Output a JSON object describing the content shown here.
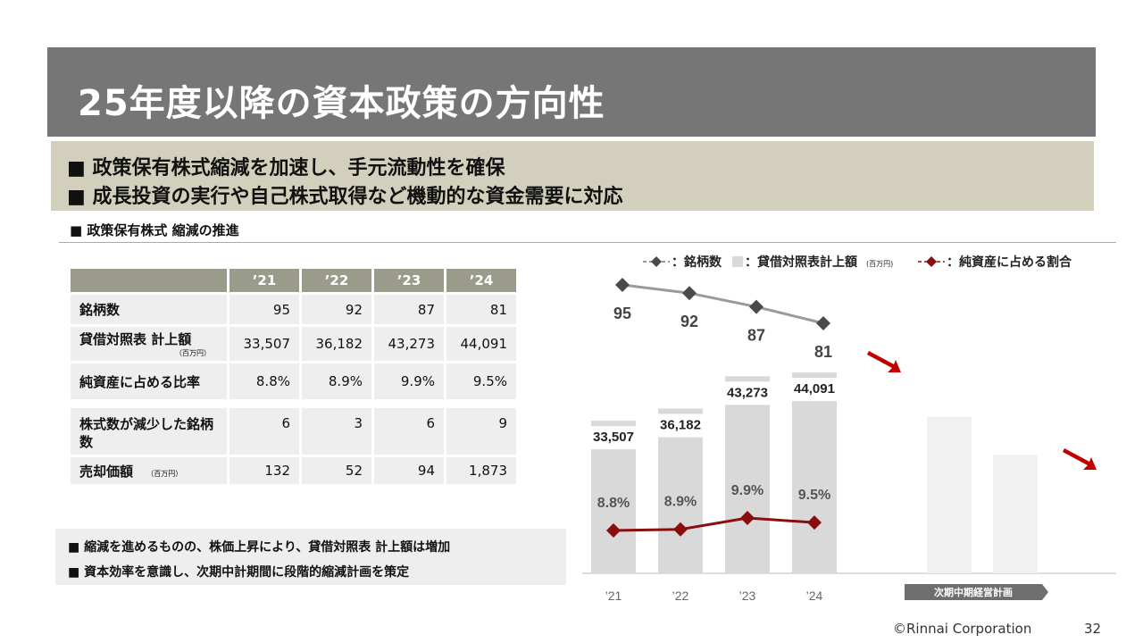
{
  "title": "25年度以降の資本政策の方向性",
  "summary": [
    "■ 政策保有株式縮減を加速し、手元流動性を確保",
    "■ 成長投資の実行や自己株式取得など機動的な資金需要に対応"
  ],
  "section_label": "■ 政策保有株式 縮減の推進",
  "table": {
    "headers": [
      "’21",
      "’22",
      "’23",
      "’24"
    ],
    "rows": [
      {
        "label": "銘柄数",
        "sub": "",
        "values": [
          "95",
          "92",
          "87",
          "81"
        ]
      },
      {
        "label": "貸借対照表 計上額",
        "sub": "（百万円）",
        "values": [
          "33,507",
          "36,182",
          "43,273",
          "44,091"
        ]
      },
      {
        "label": "純資産に占める比率",
        "sub": "",
        "values": [
          "8.8%",
          "8.9%",
          "9.9%",
          "9.5%"
        ]
      },
      {
        "label": "株式数が減少した銘柄数",
        "sub": "",
        "values": [
          "6",
          "3",
          "6",
          "9"
        ]
      },
      {
        "label": "売却価額",
        "sub": "（百万円）",
        "values": [
          "132",
          "52",
          "94",
          "1,873"
        ]
      }
    ]
  },
  "notes": [
    "■ 縮減を進めるものの、株価上昇により、貸借対照表 計上額は増加",
    "■ 資本効率を意識し、次期中計期間に段階的縮減計画を策定"
  ],
  "chart_data": {
    "type": "bar",
    "categories": [
      "’21",
      "’22",
      "’23",
      "’24"
    ],
    "legend": [
      "-◆-：銘柄数",
      "：貸借対照表計上額",
      "(百万円)",
      "-◆-：純資産に占める割合"
    ],
    "series": [
      {
        "name": "銘柄数",
        "type": "line",
        "values": [
          95,
          92,
          87,
          81
        ],
        "labels": [
          "95",
          "92",
          "87",
          "81"
        ],
        "color": "#4a4a4a"
      },
      {
        "name": "貸借対照表計上額",
        "type": "bar",
        "values": [
          33507,
          36182,
          43273,
          44091
        ],
        "labels": [
          "33,507",
          "36,182",
          "43,273",
          "44,091"
        ],
        "color": "#d9d9d9"
      },
      {
        "name": "純資産に占める割合",
        "type": "line",
        "values": [
          8.8,
          8.9,
          9.9,
          9.5
        ],
        "labels": [
          "8.8%",
          "8.9%",
          "9.9%",
          "9.5%"
        ],
        "color": "#8b0e0e"
      }
    ],
    "future_label": "次期中期経営計画",
    "future_bars_relative": [
      0.78,
      0.59
    ]
  },
  "footer": {
    "copyright": "©Rinnai Corporation",
    "page": "32"
  }
}
